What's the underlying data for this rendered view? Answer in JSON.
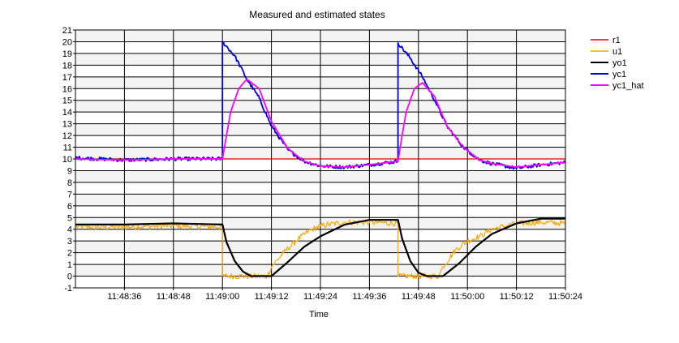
{
  "chart_data": {
    "type": "line",
    "title": "Measured and estimated states",
    "xlabel": "Time",
    "ylabel": "",
    "x_range_seconds_from_11_48_24": [
      0,
      120
    ],
    "xlim": [
      "11:48:24",
      "11:50:24"
    ],
    "ylim": [
      -1,
      21
    ],
    "grid": true,
    "legend_position": "right",
    "x_ticks": [
      "11:48:36",
      "11:48:48",
      "11:49:00",
      "11:49:12",
      "11:49:24",
      "11:49:36",
      "11:49:48",
      "11:50:00",
      "11:50:12",
      "11:50:24"
    ],
    "y_ticks": [
      -1,
      0,
      1,
      2,
      3,
      4,
      5,
      6,
      7,
      8,
      9,
      10,
      11,
      12,
      13,
      14,
      15,
      16,
      17,
      18,
      19,
      20,
      21
    ],
    "series": [
      {
        "name": "r1",
        "color": "#e00000",
        "x": [
          "11:48:24",
          "11:50:24"
        ],
        "y": [
          10,
          10
        ]
      },
      {
        "name": "u1",
        "color": "#ffa500",
        "x": [
          "11:48:24",
          "11:48:36",
          "11:48:48",
          "11:49:00",
          "11:49:00",
          "11:49:11",
          "11:49:12",
          "11:49:15",
          "11:49:18",
          "11:49:21",
          "11:49:24",
          "11:49:30",
          "11:49:36",
          "11:49:43",
          "11:49:43",
          "11:49:53",
          "11:49:54",
          "11:49:57",
          "11:50:00",
          "11:50:03",
          "11:50:06",
          "11:50:12",
          "11:50:18",
          "11:50:24"
        ],
        "y": [
          4.2,
          4.2,
          4.3,
          4.2,
          0,
          0,
          0.8,
          2.0,
          3.0,
          3.8,
          4.3,
          4.6,
          4.6,
          4.5,
          0,
          0,
          0.8,
          2.2,
          3.0,
          3.4,
          4.0,
          4.5,
          4.6,
          4.5
        ]
      },
      {
        "name": "yo1",
        "color": "#000000",
        "x": [
          "11:48:24",
          "11:48:36",
          "11:48:48",
          "11:49:00",
          "11:49:01",
          "11:49:03",
          "11:49:05",
          "11:49:07",
          "11:49:12",
          "11:49:16",
          "11:49:20",
          "11:49:24",
          "11:49:30",
          "11:49:36",
          "11:49:43",
          "11:49:44",
          "11:49:46",
          "11:49:48",
          "11:49:50",
          "11:49:54",
          "11:49:58",
          "11:50:02",
          "11:50:06",
          "11:50:12",
          "11:50:18",
          "11:50:24"
        ],
        "y": [
          4.4,
          4.4,
          4.5,
          4.4,
          2.9,
          1.3,
          0.4,
          0,
          0,
          1.2,
          2.5,
          3.4,
          4.4,
          4.8,
          4.8,
          3.2,
          1.3,
          0.3,
          0,
          0,
          1.1,
          2.5,
          3.6,
          4.5,
          4.9,
          4.9
        ]
      },
      {
        "name": "yc1",
        "color": "#0000e0",
        "x": [
          "11:48:24",
          "11:48:36",
          "11:48:48",
          "11:49:00",
          "11:49:00",
          "11:49:03",
          "11:49:06",
          "11:49:09",
          "11:49:12",
          "11:49:16",
          "11:49:20",
          "11:49:24",
          "11:49:30",
          "11:49:36",
          "11:49:43",
          "11:49:43",
          "11:49:46",
          "11:49:49",
          "11:49:52",
          "11:49:55",
          "11:49:59",
          "11:50:03",
          "11:50:06",
          "11:50:12",
          "11:50:18",
          "11:50:24"
        ],
        "y": [
          10.1,
          9.9,
          10.0,
          10.0,
          20.0,
          18.8,
          16.8,
          15.2,
          12.8,
          10.8,
          9.8,
          9.4,
          9.3,
          9.5,
          9.8,
          19.9,
          18.6,
          17.0,
          15.0,
          12.8,
          11.0,
          9.9,
          9.6,
          9.2,
          9.5,
          9.7
        ]
      },
      {
        "name": "yc1_hat",
        "color": "#ff00ff",
        "x": [
          "11:48:24",
          "11:48:36",
          "11:48:48",
          "11:49:00",
          "11:49:01",
          "11:49:02",
          "11:49:04",
          "11:49:06",
          "11:49:09",
          "11:49:12",
          "11:49:16",
          "11:49:20",
          "11:49:24",
          "11:49:30",
          "11:49:36",
          "11:49:43",
          "11:49:44",
          "11:49:45",
          "11:49:47",
          "11:49:49",
          "11:49:52",
          "11:49:55",
          "11:49:59",
          "11:50:03",
          "11:50:06",
          "11:50:12",
          "11:50:18",
          "11:50:24"
        ],
        "y": [
          10.0,
          9.9,
          10.0,
          10.0,
          12.0,
          14.0,
          16.0,
          16.8,
          16.0,
          13.2,
          10.9,
          9.8,
          9.4,
          9.3,
          9.5,
          9.8,
          12.0,
          14.0,
          16.0,
          16.5,
          15.3,
          12.8,
          11.0,
          9.9,
          9.6,
          9.3,
          9.5,
          9.7
        ]
      }
    ]
  }
}
